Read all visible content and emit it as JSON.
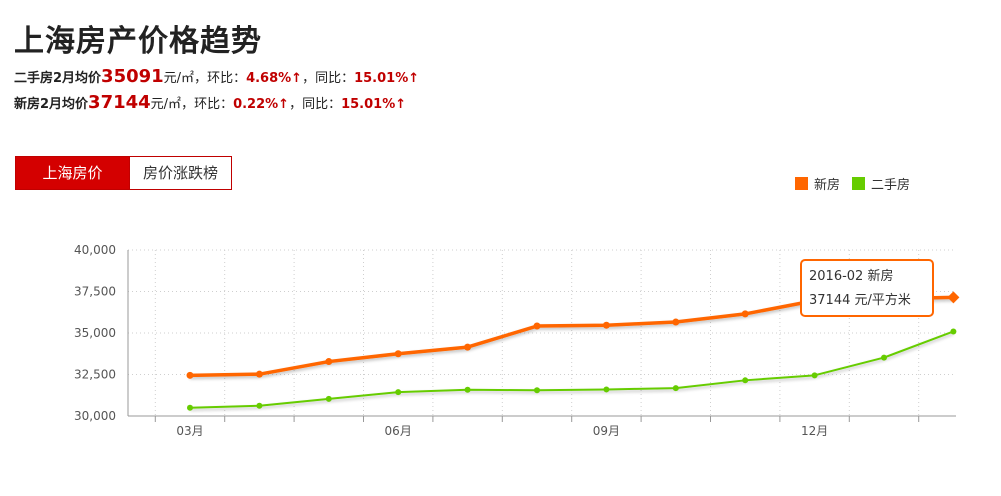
{
  "title": "上海房产价格趋势",
  "stats": [
    {
      "label": "二手房2月均价",
      "price": "35091",
      "unit": "元/㎡",
      "mom_label": "，环比：",
      "mom_value": "4.68%↑",
      "yoy_label": "，同比：",
      "yoy_value": "15.01%↑"
    },
    {
      "label": "新房2月均价",
      "price": "37144",
      "unit": "元/㎡",
      "mom_label": "，环比：",
      "mom_value": "0.22%↑",
      "yoy_label": "，同比：",
      "yoy_value": "15.01%↑"
    }
  ],
  "tabs": [
    {
      "label": "上海房价",
      "active": true
    },
    {
      "label": "房价涨跌榜",
      "active": false
    }
  ],
  "tooltip": {
    "line1": "2016-02 新房",
    "line2": "37144 元/平方米"
  },
  "chart_data": {
    "type": "line",
    "x": [
      "2015-03",
      "2015-04",
      "2015-05",
      "2015-06",
      "2015-07",
      "2015-08",
      "2015-09",
      "2015-10",
      "2015-11",
      "2015-12",
      "2016-01",
      "2016-02"
    ],
    "x_tick_labels": [
      {
        "index": 0,
        "label": "03月"
      },
      {
        "index": 3,
        "label": "06月"
      },
      {
        "index": 6,
        "label": "09月"
      },
      {
        "index": 9,
        "label": "12月"
      }
    ],
    "series": [
      {
        "name": "新房",
        "color": "#ff6600",
        "values": [
          32450,
          32520,
          33280,
          33750,
          34150,
          35420,
          35470,
          35660,
          36150,
          36950,
          37060,
          37144
        ]
      },
      {
        "name": "二手房",
        "color": "#66cc00",
        "values": [
          30500,
          30620,
          31030,
          31440,
          31580,
          31550,
          31600,
          31680,
          32150,
          32450,
          33520,
          35091
        ]
      }
    ],
    "yticks": [
      "30,000",
      "32,500",
      "35,000",
      "37,500",
      "40,000"
    ],
    "ylim": [
      30000,
      40000
    ],
    "grid": true,
    "legend_position": "top-right"
  }
}
